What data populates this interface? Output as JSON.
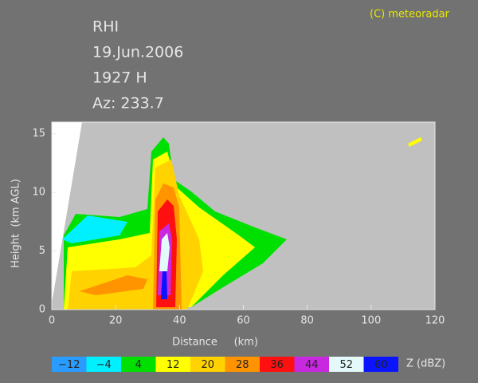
{
  "chart_data": {
    "type": "rhi",
    "title": "RHI",
    "date": "19.Jun.2006",
    "time": "1927 H",
    "azimuth": "Az: 233.7",
    "copyright": "(C) meteoradar",
    "x_label": "Distance     (km)",
    "y_label": "Height  (km AGL)",
    "xlim": [
      0,
      120
    ],
    "xticks": [
      0,
      20,
      40,
      60,
      80,
      100,
      120
    ],
    "ylim": [
      0,
      16
    ],
    "yticks": [
      0,
      5,
      10,
      15
    ],
    "colorbar_label": "Z (dBZ)",
    "levels": [
      {
        "value": -12,
        "label": "−12"
      },
      {
        "value": -4,
        "label": "−4"
      },
      4,
      12,
      20,
      28,
      36,
      44,
      52,
      60
    ],
    "level_colors": [
      "#2a9cff",
      "#00f0ff",
      "#00e000",
      "#ffff00",
      "#ffd200",
      "#ff9400",
      "#ff1010",
      "#c828e0",
      "#e4fafa",
      "#0a14ff"
    ]
  }
}
